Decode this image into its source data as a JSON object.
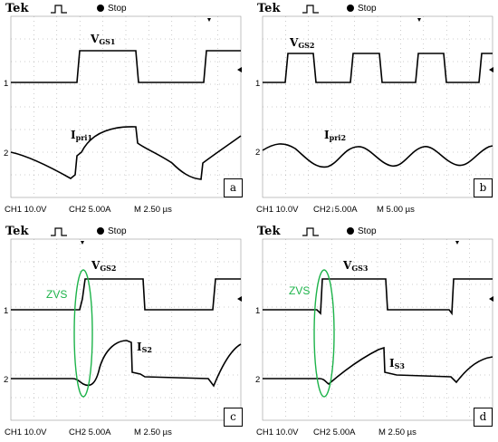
{
  "panels": [
    {
      "tek": "Tek",
      "stop": "Stop",
      "sig1": {
        "main": "V",
        "sub": "GS1"
      },
      "sig2": {
        "main": "I",
        "sub": "pri1"
      },
      "ch1_marker": "1",
      "ch2_marker": "2",
      "footer": {
        "ch1": "CH1  10.0V",
        "ch2": "CH2  5.00A",
        "m": "M 2.50 µs"
      },
      "letter": "a",
      "zvs": ""
    },
    {
      "tek": "Tek",
      "stop": "Stop",
      "sig1": {
        "main": "V",
        "sub": "GS2"
      },
      "sig2": {
        "main": "I",
        "sub": "pri2"
      },
      "ch1_marker": "1",
      "ch2_marker": "2",
      "footer": {
        "ch1": "CH1  10.0V",
        "ch2": "CH2↓5.00A",
        "m": "M 5.00 µs"
      },
      "letter": "b",
      "zvs": ""
    },
    {
      "tek": "Tek",
      "stop": "Stop",
      "sig1": {
        "main": "V",
        "sub": "GS2"
      },
      "sig2": {
        "main": "I",
        "sub": "S2"
      },
      "ch1_marker": "1",
      "ch2_marker": "2",
      "footer": {
        "ch1": "CH1  10.0V",
        "ch2": "CH2  5.00A",
        "m": "M 2.50 µs"
      },
      "letter": "c",
      "zvs": "ZVS"
    },
    {
      "tek": "Tek",
      "stop": "Stop",
      "sig1": {
        "main": "V",
        "sub": "GS3"
      },
      "sig2": {
        "main": "I",
        "sub": "S3"
      },
      "ch1_marker": "1",
      "ch2_marker": "2",
      "footer": {
        "ch1": "CH1  10.0V",
        "ch2": "CH2  5.00A",
        "m": "M 2.50 µs"
      },
      "letter": "d",
      "zvs": "ZVS"
    }
  ],
  "colors": {
    "trace": "#000000",
    "zvs": "#1db34a",
    "grid": "#9a9a9a"
  }
}
